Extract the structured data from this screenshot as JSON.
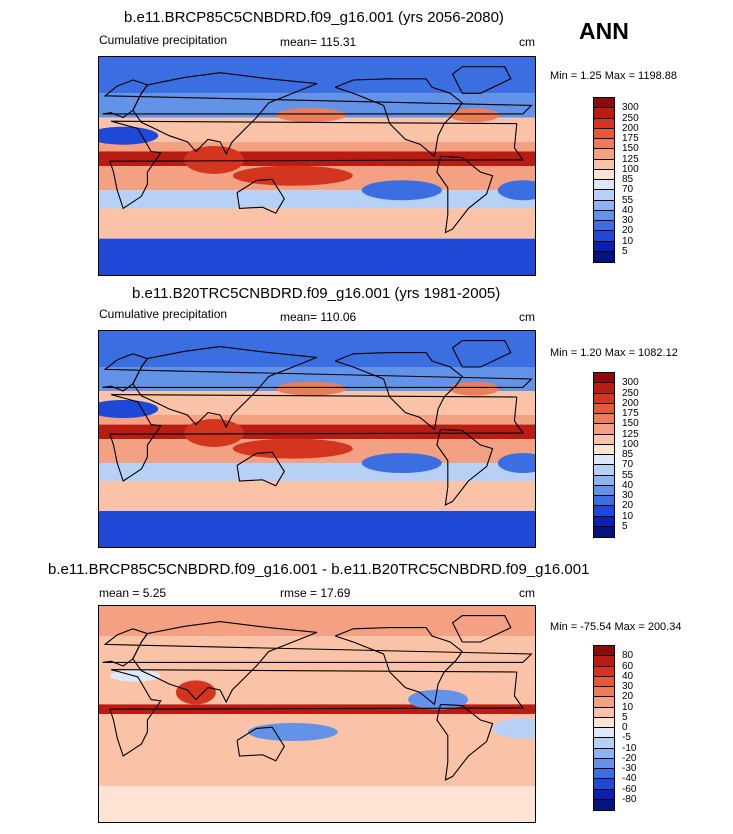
{
  "season": "ANN",
  "panels": [
    {
      "id": "p1",
      "title": "b.e11.BRCP85C5CNBDRD.f09_g16.001 (yrs 2056-2080)",
      "left_label": "Cumulative precipitation",
      "center_label": "mean= 115.31",
      "units": "cm",
      "minmax": "Min =   1.25 Max = 1198.88",
      "levels": [
        "300",
        "250",
        "200",
        "175",
        "150",
        "125",
        "100",
        "85",
        "70",
        "55",
        "40",
        "30",
        "20",
        "10",
        "5"
      ],
      "colors": [
        "#8c0a0a",
        "#b81c12",
        "#d4351f",
        "#e25a38",
        "#ec7d5a",
        "#f4a183",
        "#fac3a8",
        "#fde3d3",
        "#dde9fb",
        "#b7d1f6",
        "#8eb4ef",
        "#6393e8",
        "#3b6ee0",
        "#1f48d6",
        "#0c1fb0",
        "#05137c"
      ]
    },
    {
      "id": "p2",
      "title": "b.e11.B20TRC5CNBDRD.f09_g16.001 (yrs 1981-2005)",
      "left_label": "Cumulative precipitation",
      "center_label": "mean= 110.06",
      "units": "cm",
      "minmax": "Min =   1.20 Max = 1082.12",
      "levels": [
        "300",
        "250",
        "200",
        "175",
        "150",
        "125",
        "100",
        "85",
        "70",
        "55",
        "40",
        "30",
        "20",
        "10",
        "5"
      ],
      "colors": [
        "#8c0a0a",
        "#b81c12",
        "#d4351f",
        "#e25a38",
        "#ec7d5a",
        "#f4a183",
        "#fac3a8",
        "#fde3d3",
        "#dde9fb",
        "#b7d1f6",
        "#8eb4ef",
        "#6393e8",
        "#3b6ee0",
        "#1f48d6",
        "#0c1fb0",
        "#05137c"
      ]
    },
    {
      "id": "p3",
      "title": "b.e11.BRCP85C5CNBDRD.f09_g16.001 - b.e11.B20TRC5CNBDRD.f09_g16.001",
      "left_label": "mean =   5.25",
      "center_label": "rmse =  17.69",
      "units": "cm",
      "minmax": "Min = -75.54 Max = 200.34",
      "levels": [
        "80",
        "60",
        "40",
        "30",
        "20",
        "10",
        "5",
        "0",
        "-5",
        "-10",
        "-20",
        "-30",
        "-40",
        "-60",
        "-80"
      ],
      "colors": [
        "#8c0a0a",
        "#b81c12",
        "#d4351f",
        "#e25a38",
        "#ec7d5a",
        "#f4a183",
        "#fac3a8",
        "#fde3d3",
        "#dde9fb",
        "#b7d1f6",
        "#8eb4ef",
        "#6393e8",
        "#3b6ee0",
        "#1f48d6",
        "#0c1fb0",
        "#05137c"
      ]
    }
  ]
}
